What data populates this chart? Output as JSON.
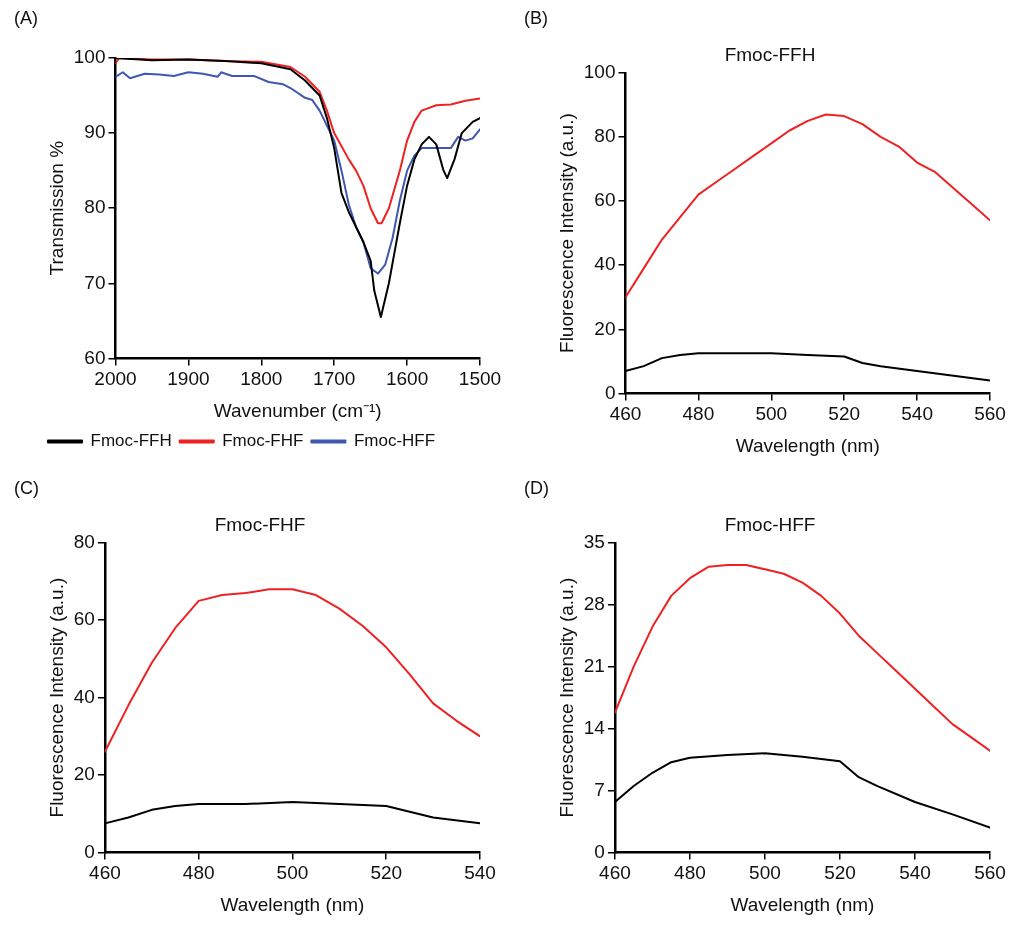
{
  "chart_data": [
    {
      "type": "line",
      "xlabel": "Wavenumber (cm⁻¹)",
      "ylabel": "Transmission %",
      "annotations": [
        "(A)"
      ],
      "xlim": [
        2000,
        1500
      ],
      "xticks": [
        2000,
        1900,
        1800,
        1700,
        1600,
        1500
      ],
      "ylim": [
        60,
        100
      ],
      "yticks": [
        60,
        70,
        80,
        90,
        100
      ],
      "grid": false,
      "legend": "bottom",
      "marker": "none",
      "line_style": "solid",
      "series": [
        {
          "name": "Fmoc-FFH",
          "color": "#000000",
          "x": [
            2000,
            1950,
            1900,
            1850,
            1800,
            1760,
            1740,
            1720,
            1710,
            1700,
            1690,
            1680,
            1660,
            1650,
            1645,
            1636,
            1625,
            1610,
            1600,
            1590,
            1580,
            1570,
            1560,
            1550,
            1545,
            1535,
            1525,
            1510,
            1500
          ],
          "values": [
            100,
            99.7,
            99.8,
            99.6,
            99.3,
            98.5,
            97,
            95,
            92,
            88,
            82,
            79.5,
            75.5,
            73,
            69,
            65.5,
            70,
            78,
            83,
            86.5,
            88.5,
            89.5,
            88.5,
            85,
            84,
            86.5,
            90,
            91.5,
            92
          ]
        },
        {
          "name": "Fmoc-FHF",
          "color": "#ee2222",
          "x": [
            2000,
            1995,
            1950,
            1900,
            1850,
            1800,
            1760,
            1740,
            1720,
            1710,
            1700,
            1680,
            1670,
            1660,
            1650,
            1640,
            1635,
            1625,
            1610,
            1600,
            1590,
            1580,
            1560,
            1540,
            1520,
            1500
          ],
          "values": [
            99.3,
            100,
            99.8,
            99.8,
            99.6,
            99.5,
            98.8,
            97.5,
            95.5,
            93,
            90,
            86.5,
            85,
            83,
            80,
            78,
            78,
            80,
            85,
            89,
            91.5,
            93,
            93.7,
            93.8,
            94.3,
            94.6
          ]
        },
        {
          "name": "Fmoc-HFF",
          "color": "#3f57b0",
          "x": [
            2000,
            1990,
            1980,
            1960,
            1940,
            1920,
            1900,
            1880,
            1860,
            1855,
            1840,
            1810,
            1790,
            1770,
            1760,
            1740,
            1730,
            1720,
            1700,
            1690,
            1680,
            1670,
            1660,
            1650,
            1640,
            1630,
            1620,
            1610,
            1600,
            1590,
            1580,
            1560,
            1540,
            1530,
            1520,
            1510,
            1500
          ],
          "values": [
            97.5,
            98.1,
            97.3,
            97.9,
            97.8,
            97.6,
            98.1,
            97.9,
            97.5,
            98.1,
            97.6,
            97.6,
            96.8,
            96.5,
            96,
            94.7,
            94.4,
            93,
            89,
            85,
            80.5,
            77.5,
            75.5,
            72,
            71.3,
            72.5,
            76,
            81,
            85,
            87,
            88,
            88,
            88,
            89.5,
            89,
            89.3,
            90.5
          ]
        }
      ]
    },
    {
      "type": "line",
      "title": "Fmoc-FFH",
      "xlabel": "Wavelength (nm)",
      "ylabel": "Fluorescence Intensity (a.u.)",
      "annotations": [
        "(B)"
      ],
      "xlim": [
        460,
        560
      ],
      "xticks": [
        460,
        480,
        500,
        520,
        540,
        560
      ],
      "ylim": [
        0,
        100
      ],
      "yticks": [
        0,
        20,
        40,
        60,
        80,
        100
      ],
      "grid": false,
      "legend": false,
      "marker": "none",
      "line_style": "solid",
      "series": [
        {
          "color": "#ee2222",
          "x": [
            460,
            465,
            470,
            475,
            480,
            485,
            490,
            495,
            500,
            505,
            510,
            515,
            520,
            525,
            530,
            535,
            540,
            545,
            550,
            555,
            560
          ],
          "values": [
            30,
            39,
            48,
            55,
            62,
            66,
            70,
            74,
            78,
            82,
            85,
            87,
            86.5,
            84,
            80,
            77,
            72,
            69,
            64,
            59,
            54
          ]
        },
        {
          "color": "#000000",
          "x": [
            460,
            465,
            470,
            475,
            480,
            490,
            500,
            510,
            520,
            525,
            530,
            540,
            550,
            560
          ],
          "values": [
            7,
            8.5,
            11,
            12,
            12.5,
            12.5,
            12.5,
            12,
            11.5,
            9.5,
            8.5,
            7,
            5.5,
            4
          ]
        }
      ]
    },
    {
      "type": "line",
      "title": "Fmoc-FHF",
      "xlabel": "Wavelength (nm)",
      "ylabel": "Fluorescence Intensity (a.u.)",
      "annotations": [
        "(C)"
      ],
      "xlim": [
        460,
        540
      ],
      "xticks": [
        460,
        480,
        500,
        520,
        540
      ],
      "ylim": [
        0,
        80
      ],
      "yticks": [
        0,
        20,
        40,
        60,
        80
      ],
      "grid": false,
      "legend": false,
      "marker": "none",
      "line_style": "solid",
      "series": [
        {
          "color": "#ee2222",
          "x": [
            460,
            465,
            470,
            475,
            480,
            485,
            490,
            495,
            500,
            505,
            510,
            515,
            520,
            525,
            530,
            535,
            540
          ],
          "values": [
            26,
            38,
            49,
            58,
            65,
            66.5,
            67,
            68,
            68,
            66.5,
            63,
            58.5,
            53,
            46,
            38.5,
            34,
            30
          ]
        },
        {
          "color": "#000000",
          "x": [
            460,
            465,
            470,
            475,
            480,
            490,
            500,
            510,
            520,
            525,
            530,
            540
          ],
          "values": [
            7.5,
            9,
            11,
            12,
            12.5,
            12.5,
            13,
            12.5,
            12,
            10.5,
            9,
            7.5
          ]
        }
      ]
    },
    {
      "type": "line",
      "title": "Fmoc-HFF",
      "xlabel": "Wavelength (nm)",
      "ylabel": "Fluorescence Intensity (a.u.)",
      "annotations": [
        "(D)"
      ],
      "xlim": [
        460,
        560
      ],
      "xticks": [
        460,
        480,
        500,
        520,
        540,
        560
      ],
      "ylim": [
        0,
        35
      ],
      "yticks": [
        0,
        7,
        14,
        21,
        28,
        35
      ],
      "grid": false,
      "legend": false,
      "marker": "none",
      "line_style": "solid",
      "series": [
        {
          "color": "#ee2222",
          "x": [
            460,
            465,
            470,
            475,
            480,
            485,
            490,
            495,
            500,
            505,
            510,
            515,
            520,
            525,
            530,
            535,
            540,
            545,
            550,
            555,
            560
          ],
          "values": [
            15.8,
            21,
            25.5,
            29,
            31,
            32.3,
            32.5,
            32.5,
            32,
            31.5,
            30.5,
            29,
            27,
            24.5,
            22.5,
            20.5,
            18.5,
            16.5,
            14.5,
            13,
            11.5
          ]
        },
        {
          "color": "#000000",
          "x": [
            460,
            465,
            470,
            475,
            480,
            490,
            500,
            510,
            520,
            525,
            530,
            540,
            550,
            560
          ],
          "values": [
            5.7,
            7.5,
            9,
            10.2,
            10.7,
            11,
            11.2,
            10.8,
            10.3,
            8.5,
            7.5,
            5.7,
            4.3,
            2.8
          ]
        }
      ]
    }
  ]
}
